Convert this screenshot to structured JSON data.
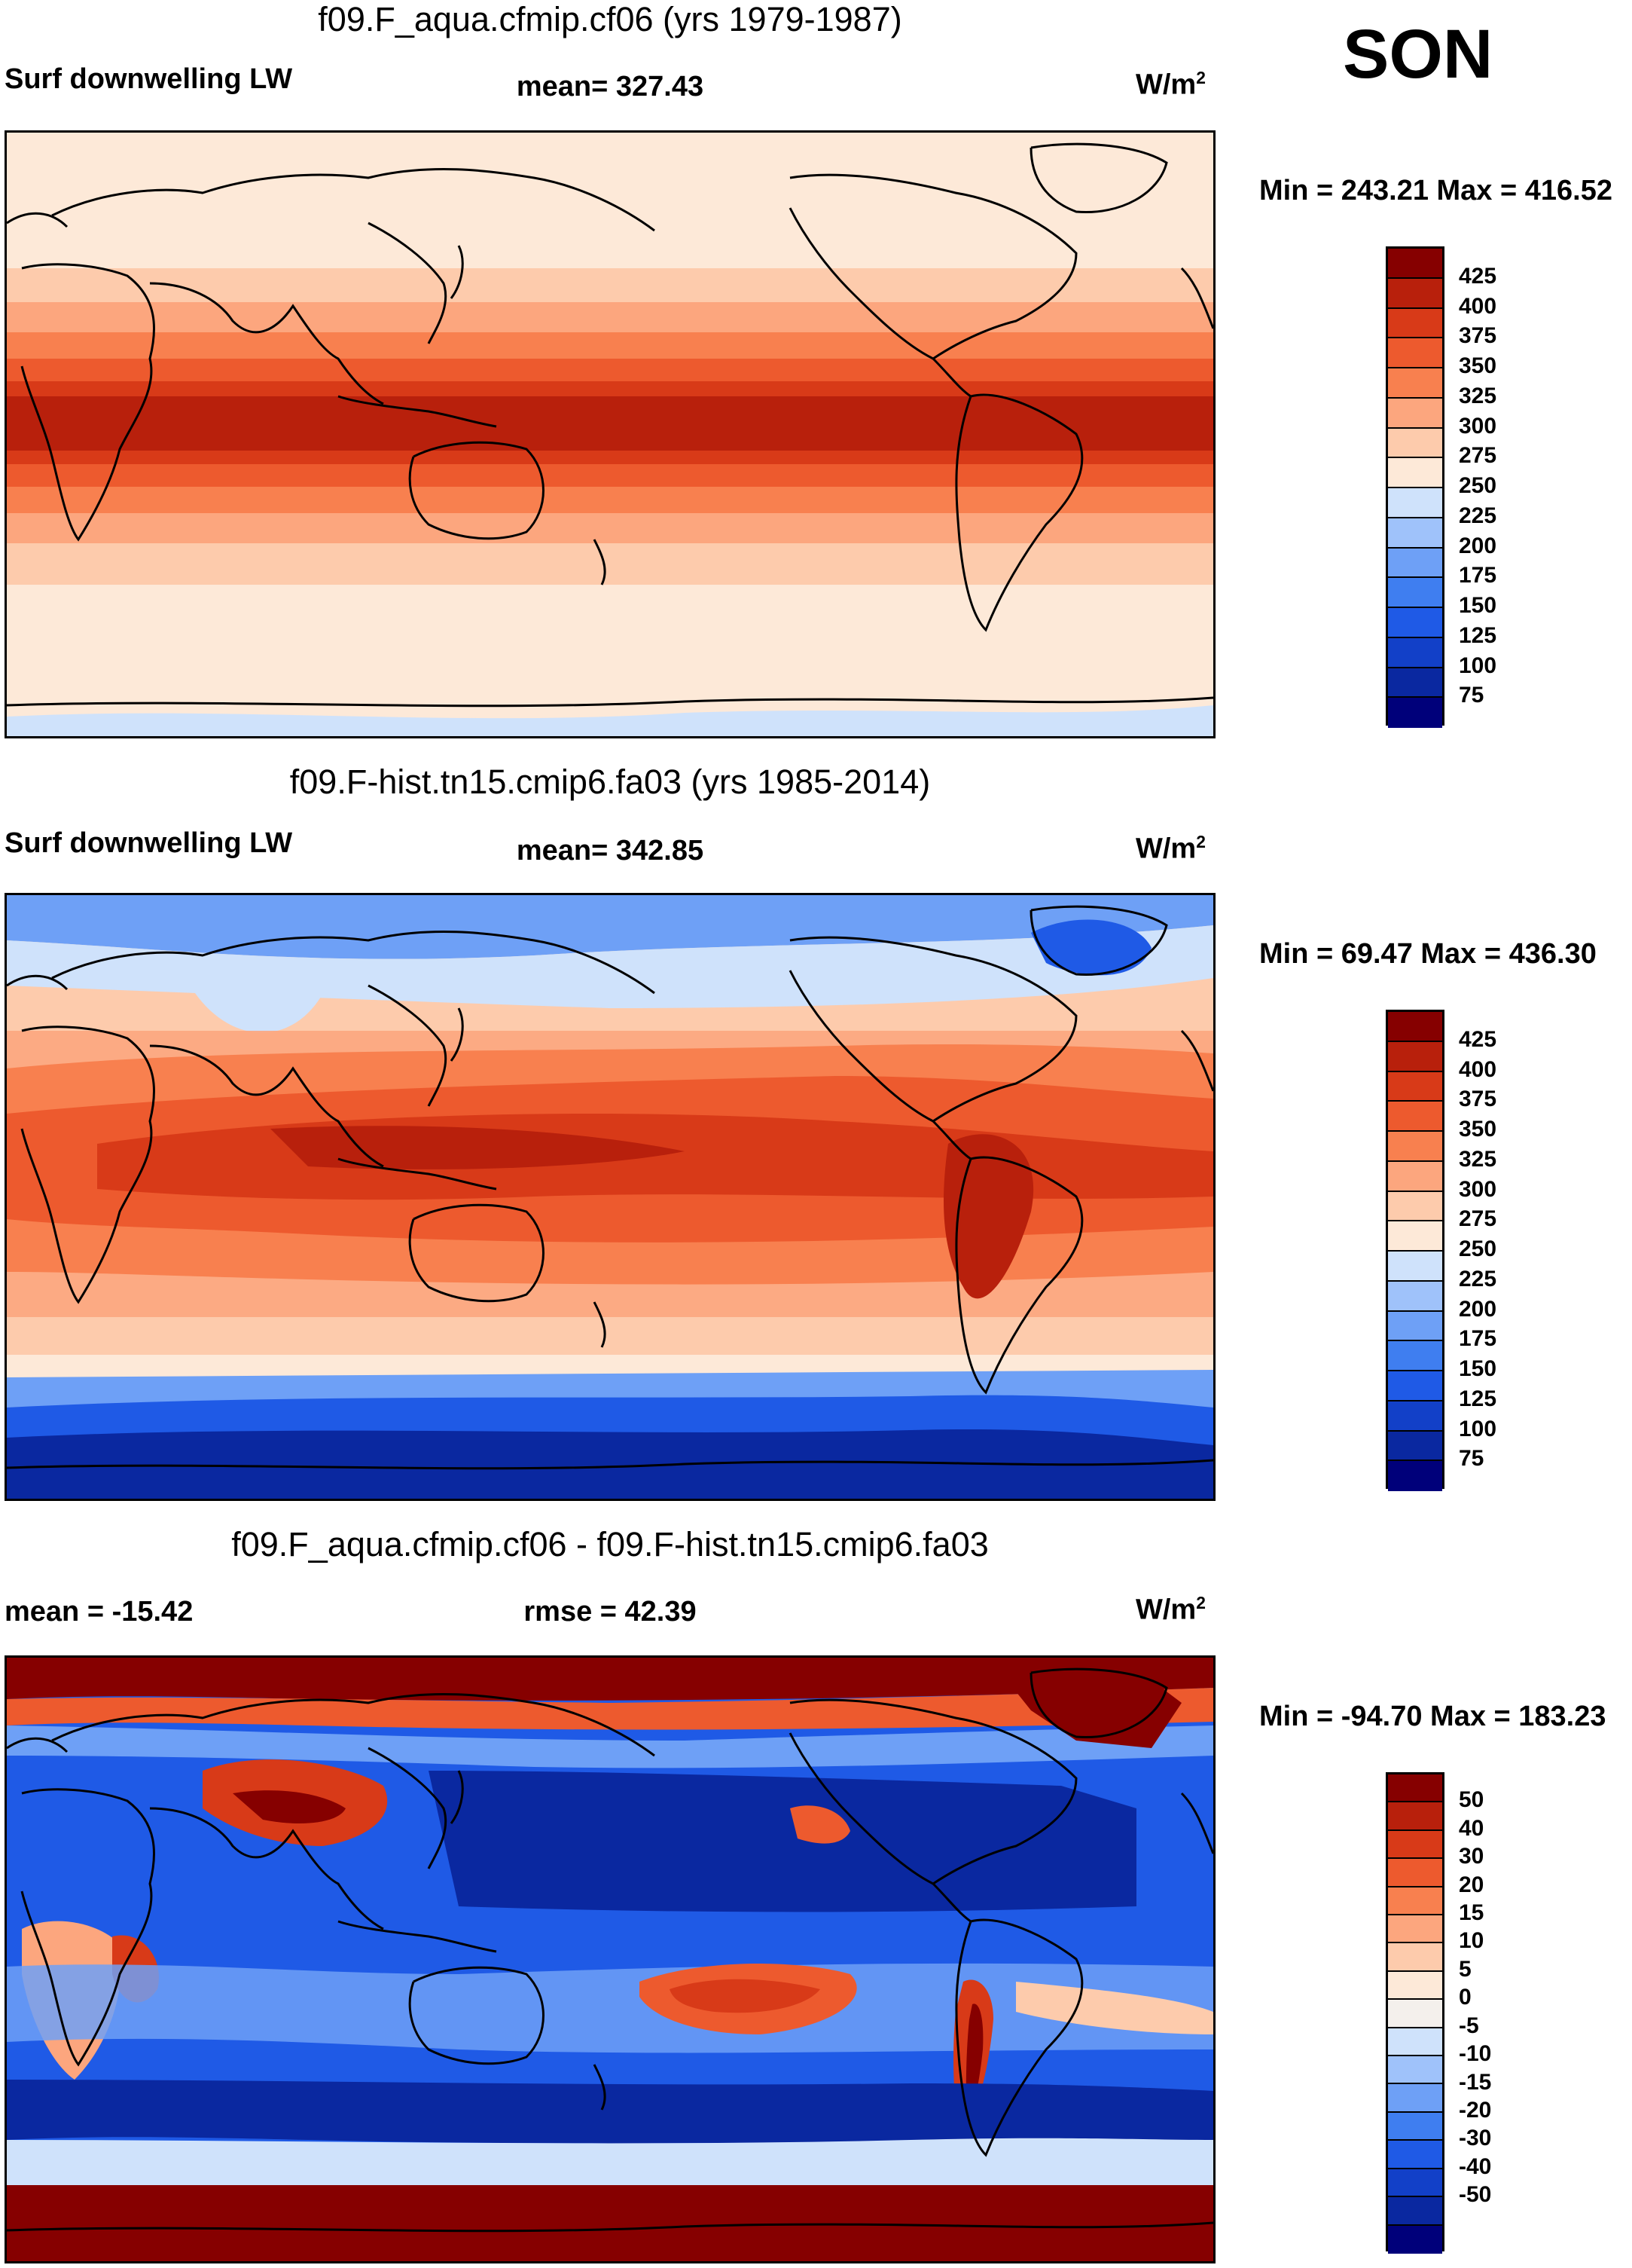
{
  "season": "SON",
  "units": "W/m",
  "units_sup": "2",
  "colors": {
    "level_scale": [
      "#00007a",
      "#0a28a0",
      "#1240c8",
      "#1f5ae6",
      "#3f7ef0",
      "#6ea0f6",
      "#9fc2fa",
      "#cfe2fb",
      "#fde9d8",
      "#fdcbac",
      "#fca67e",
      "#f8804f",
      "#ed5a2e",
      "#d83a18",
      "#b8200c",
      "#860000"
    ],
    "diff_scale": [
      "#00007a",
      "#0a28a0",
      "#1240c8",
      "#1f5ae6",
      "#3f7ef0",
      "#6ea0f6",
      "#9fc2fa",
      "#cfe2fb",
      "#f4f0ec",
      "#fde9d8",
      "#fdcbac",
      "#fca67e",
      "#f8804f",
      "#ed5a2e",
      "#d83a18",
      "#b8200c",
      "#860000"
    ]
  },
  "panels": [
    {
      "title": "f09.F_aqua.cfmip.cf06 (yrs 1979-1987)",
      "left_label": "Surf downwelling LW",
      "center_label": "mean= 327.43",
      "minmax": "Min = 243.21 Max = 416.52",
      "colorbar_labels": [
        "425",
        "400",
        "375",
        "350",
        "325",
        "300",
        "275",
        "250",
        "225",
        "200",
        "175",
        "150",
        "125",
        "100",
        "75"
      ]
    },
    {
      "title": "f09.F-hist.tn15.cmip6.fa03 (yrs 1985-2014)",
      "left_label": "Surf downwelling LW",
      "center_label": "mean= 342.85",
      "minmax": "Min =  69.47 Max = 436.30",
      "colorbar_labels": [
        "425",
        "400",
        "375",
        "350",
        "325",
        "300",
        "275",
        "250",
        "225",
        "200",
        "175",
        "150",
        "125",
        "100",
        "75"
      ]
    },
    {
      "title": "f09.F_aqua.cfmip.cf06 - f09.F-hist.tn15.cmip6.fa03",
      "left_label": "mean = -15.42",
      "center_label": "rmse =  42.39",
      "minmax": "Min = -94.70 Max = 183.23",
      "colorbar_labels": [
        "50",
        "40",
        "30",
        "20",
        "15",
        "10",
        "5",
        "0",
        "-5",
        "-10",
        "-15",
        "-20",
        "-30",
        "-40",
        "-50"
      ]
    }
  ]
}
